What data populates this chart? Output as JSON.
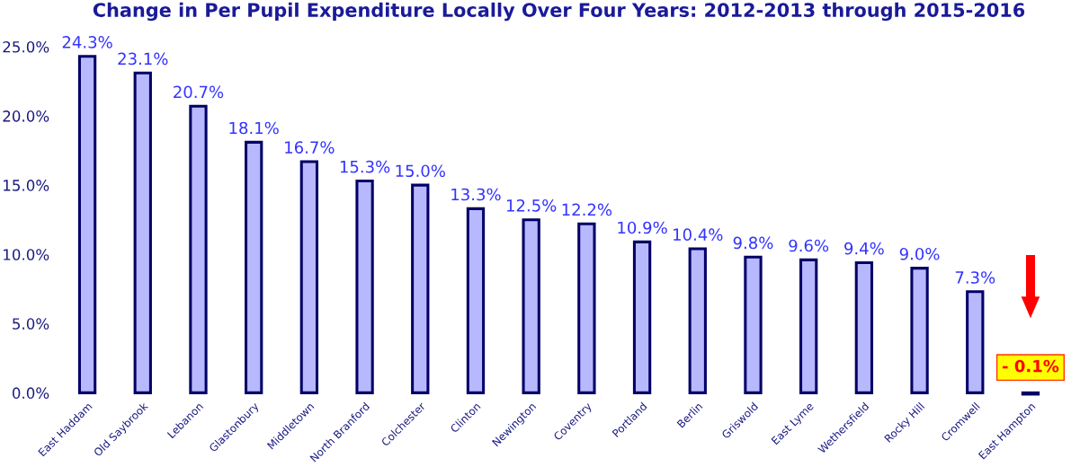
{
  "chart_data": {
    "type": "bar",
    "title": "Change in Per Pupil Expenditure Locally Over Four Years: 2012-2013 through 2015-2016",
    "categories": [
      "East Haddam",
      "Old Saybrook",
      "Lebanon",
      "Glastonbury",
      "Middletown",
      "North Branford",
      "Colchester",
      "Clinton",
      "Newington",
      "Coventry",
      "Portland",
      "Berlin",
      "Griswold",
      "East Lyme",
      "Wethersfield",
      "Rocky Hill",
      "Cromwell",
      "East Hampton"
    ],
    "values": [
      24.3,
      23.1,
      20.7,
      18.1,
      16.7,
      15.3,
      15.0,
      13.3,
      12.5,
      12.2,
      10.9,
      10.4,
      9.8,
      9.6,
      9.4,
      9.0,
      7.3,
      -0.1
    ],
    "value_labels": [
      "24.3%",
      "23.1%",
      "20.7%",
      "18.1%",
      "16.7%",
      "15.3%",
      "15.0%",
      "13.3%",
      "12.5%",
      "12.2%",
      "10.9%",
      "10.4%",
      "9.8%",
      "9.6%",
      "9.4%",
      "9.0%",
      "7.3%",
      "- 0.1%"
    ],
    "color": "#b8b8ff",
    "ylim": [
      -0.3,
      25
    ],
    "yticks": [
      {
        "value": 0,
        "label": "0.0%"
      },
      {
        "value": 5,
        "label": "5.0%"
      },
      {
        "value": 10,
        "label": "10.0%"
      },
      {
        "value": 15,
        "label": "15.0%"
      },
      {
        "value": 20,
        "label": "20.0%"
      },
      {
        "value": 25,
        "label": "25.0%"
      }
    ],
    "grid": false,
    "legend": false
  }
}
